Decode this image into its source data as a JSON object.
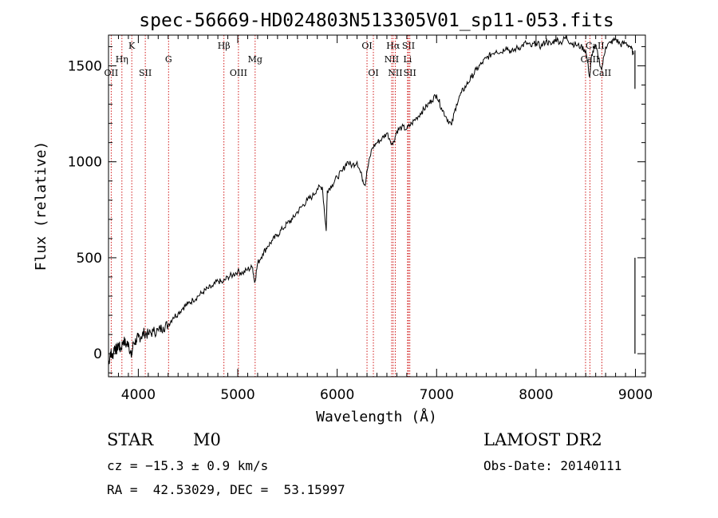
{
  "chart_data": {
    "type": "line",
    "title": "spec-56669-HD024803N513305V01_sp11-053.fits",
    "xlabel": "Wavelength (Å)",
    "ylabel": "Flux (relative)",
    "xlim": [
      3700,
      9100
    ],
    "ylim": [
      -120,
      1660
    ],
    "xticks": [
      4000,
      5000,
      6000,
      7000,
      8000,
      9000
    ],
    "yticks": [
      0,
      500,
      1000,
      1500
    ],
    "grid": false,
    "line_color": "#000000",
    "marker_color": "#cc0000",
    "series": [
      {
        "points": [
          [
            3700,
            -60
          ],
          [
            3720,
            10
          ],
          [
            3740,
            -20
          ],
          [
            3760,
            40
          ],
          [
            3780,
            15
          ],
          [
            3800,
            50
          ],
          [
            3820,
            20
          ],
          [
            3850,
            70
          ],
          [
            3880,
            45
          ],
          [
            3900,
            60
          ],
          [
            3930,
            -20
          ],
          [
            3950,
            55
          ],
          [
            3980,
            70
          ],
          [
            4000,
            85
          ],
          [
            4030,
            90
          ],
          [
            4060,
            110
          ],
          [
            4100,
            100
          ],
          [
            4150,
            115
          ],
          [
            4200,
            120
          ],
          [
            4250,
            140
          ],
          [
            4300,
            150
          ],
          [
            4350,
            190
          ],
          [
            4400,
            210
          ],
          [
            4450,
            240
          ],
          [
            4500,
            260
          ],
          [
            4550,
            280
          ],
          [
            4600,
            300
          ],
          [
            4650,
            320
          ],
          [
            4700,
            340
          ],
          [
            4750,
            350
          ],
          [
            4800,
            380
          ],
          [
            4850,
            370
          ],
          [
            4900,
            400
          ],
          [
            4950,
            410
          ],
          [
            5000,
            430
          ],
          [
            5050,
            420
          ],
          [
            5100,
            440
          ],
          [
            5150,
            450
          ],
          [
            5170,
            370
          ],
          [
            5200,
            470
          ],
          [
            5250,
            520
          ],
          [
            5300,
            560
          ],
          [
            5350,
            590
          ],
          [
            5400,
            620
          ],
          [
            5450,
            650
          ],
          [
            5500,
            680
          ],
          [
            5550,
            700
          ],
          [
            5600,
            740
          ],
          [
            5650,
            770
          ],
          [
            5700,
            800
          ],
          [
            5750,
            820
          ],
          [
            5800,
            860
          ],
          [
            5850,
            870
          ],
          [
            5890,
            640
          ],
          [
            5900,
            850
          ],
          [
            5950,
            880
          ],
          [
            6000,
            920
          ],
          [
            6050,
            950
          ],
          [
            6100,
            1000
          ],
          [
            6150,
            980
          ],
          [
            6200,
            1000
          ],
          [
            6250,
            920
          ],
          [
            6280,
            880
          ],
          [
            6300,
            950
          ],
          [
            6350,
            1070
          ],
          [
            6400,
            1100
          ],
          [
            6450,
            1120
          ],
          [
            6500,
            1150
          ],
          [
            6560,
            1090
          ],
          [
            6600,
            1160
          ],
          [
            6650,
            1180
          ],
          [
            6700,
            1170
          ],
          [
            6750,
            1200
          ],
          [
            6800,
            1230
          ],
          [
            6850,
            1260
          ],
          [
            6900,
            1290
          ],
          [
            6950,
            1320
          ],
          [
            7000,
            1350
          ],
          [
            7050,
            1280
          ],
          [
            7100,
            1230
          ],
          [
            7150,
            1190
          ],
          [
            7200,
            1300
          ],
          [
            7250,
            1360
          ],
          [
            7300,
            1400
          ],
          [
            7350,
            1440
          ],
          [
            7400,
            1480
          ],
          [
            7450,
            1510
          ],
          [
            7500,
            1540
          ],
          [
            7550,
            1560
          ],
          [
            7600,
            1580
          ],
          [
            7650,
            1570
          ],
          [
            7700,
            1600
          ],
          [
            7750,
            1570
          ],
          [
            7800,
            1590
          ],
          [
            7850,
            1600
          ],
          [
            7900,
            1620
          ],
          [
            7950,
            1600
          ],
          [
            8000,
            1620
          ],
          [
            8050,
            1600
          ],
          [
            8100,
            1630
          ],
          [
            8150,
            1610
          ],
          [
            8200,
            1640
          ],
          [
            8250,
            1620
          ],
          [
            8300,
            1650
          ],
          [
            8350,
            1620
          ],
          [
            8400,
            1610
          ],
          [
            8450,
            1600
          ],
          [
            8500,
            1580
          ],
          [
            8540,
            1440
          ],
          [
            8560,
            1560
          ],
          [
            8600,
            1600
          ],
          [
            8660,
            1480
          ],
          [
            8700,
            1600
          ],
          [
            8750,
            1620
          ],
          [
            8800,
            1640
          ],
          [
            8850,
            1610
          ],
          [
            8900,
            1620
          ],
          [
            8950,
            1600
          ],
          [
            8980,
            1560
          ]
        ]
      }
    ],
    "lines": [
      {
        "label": "OII",
        "x": 3727,
        "row": 3,
        "anchor": "middle"
      },
      {
        "label": "Hη",
        "x": 3835,
        "row": 2,
        "anchor": "middle"
      },
      {
        "label": "K",
        "x": 3934,
        "row": 1,
        "anchor": "middle"
      },
      {
        "label": "SII",
        "x": 4070,
        "row": 3,
        "anchor": "middle"
      },
      {
        "label": "G",
        "x": 4304,
        "row": 2,
        "anchor": "middle"
      },
      {
        "label": "Hβ",
        "x": 4861,
        "row": 1,
        "anchor": "middle"
      },
      {
        "label": "OIII",
        "x": 5007,
        "row": 3,
        "anchor": "middle"
      },
      {
        "label": "Mg",
        "x": 5175,
        "row": 2,
        "anchor": "middle"
      },
      {
        "label": "OI",
        "x": 6300,
        "row": 1,
        "anchor": "middle"
      },
      {
        "label": "OI",
        "x": 6364,
        "row": 3,
        "anchor": "middle"
      },
      {
        "label": "Hα",
        "x": 6563,
        "row": 1,
        "anchor": "middle"
      },
      {
        "label": "NII",
        "x": 6548,
        "row": 2,
        "anchor": "middle"
      },
      {
        "label": "NII",
        "x": 6584,
        "row": 3,
        "anchor": "middle"
      },
      {
        "label": "SII",
        "x": 6717,
        "row": 1,
        "anchor": "middle"
      },
      {
        "label": "Li",
        "x": 6708,
        "row": 2,
        "anchor": "middle"
      },
      {
        "label": "SII",
        "x": 6731,
        "row": 3,
        "anchor": "middle"
      },
      {
        "label": "CaII",
        "x": 8498,
        "row": 1,
        "anchor": "start"
      },
      {
        "label": "CaII",
        "x": 8542,
        "row": 2,
        "anchor": "middle"
      },
      {
        "label": "CaII",
        "x": 8662,
        "row": 3,
        "anchor": "middle"
      }
    ]
  },
  "info": {
    "class_label": "STAR",
    "subclass": "M0",
    "survey": "LAMOST DR2",
    "cz": "cz = −15.3 ± 0.9 km/s",
    "obs_date": "Obs-Date: 20140111",
    "coords": "RA =  42.53029, DEC =  53.15997"
  }
}
